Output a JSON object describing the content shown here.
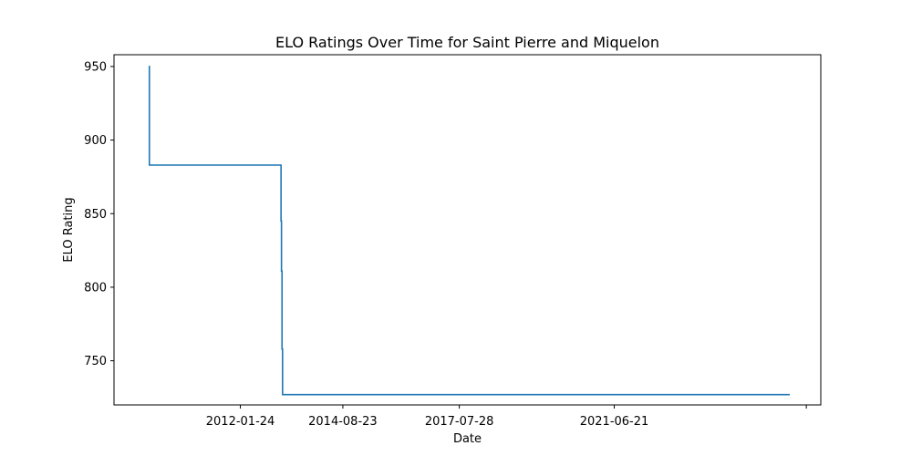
{
  "chart_data": {
    "type": "line",
    "title": "ELO Ratings Over Time for Saint Pierre and Miquelon",
    "xlabel": "Date",
    "ylabel": "ELO Rating",
    "x_axis_type": "date",
    "xlim": [
      "2008-11-19",
      "2026-09-01"
    ],
    "ylim": [
      720,
      958
    ],
    "y_ticks": [
      750,
      800,
      850,
      900,
      950
    ],
    "x_ticks": [
      {
        "date": "2012-01-24",
        "label": "2012-01-24"
      },
      {
        "date": "2014-08-23",
        "label": "2014-08-23"
      },
      {
        "date": "2017-07-28",
        "label": "2017-07-28"
      },
      {
        "date": "2021-06-21",
        "label": "2021-06-21"
      },
      {
        "date": "2026-04-21",
        "label": ""
      }
    ],
    "grid": false,
    "legend": "none",
    "series": [
      {
        "color": "#1f77b4",
        "points": [
          [
            "2009-10-03",
            950
          ],
          [
            "2009-10-10",
            950
          ],
          [
            "2009-10-10",
            883
          ],
          [
            "2013-02-01",
            883
          ],
          [
            "2013-02-01",
            845
          ],
          [
            "2013-02-05",
            845
          ],
          [
            "2013-02-05",
            811
          ],
          [
            "2013-02-10",
            811
          ],
          [
            "2013-02-10",
            758
          ],
          [
            "2013-02-15",
            758
          ],
          [
            "2013-02-15",
            727
          ],
          [
            "2025-11-20",
            727
          ]
        ]
      }
    ]
  }
}
